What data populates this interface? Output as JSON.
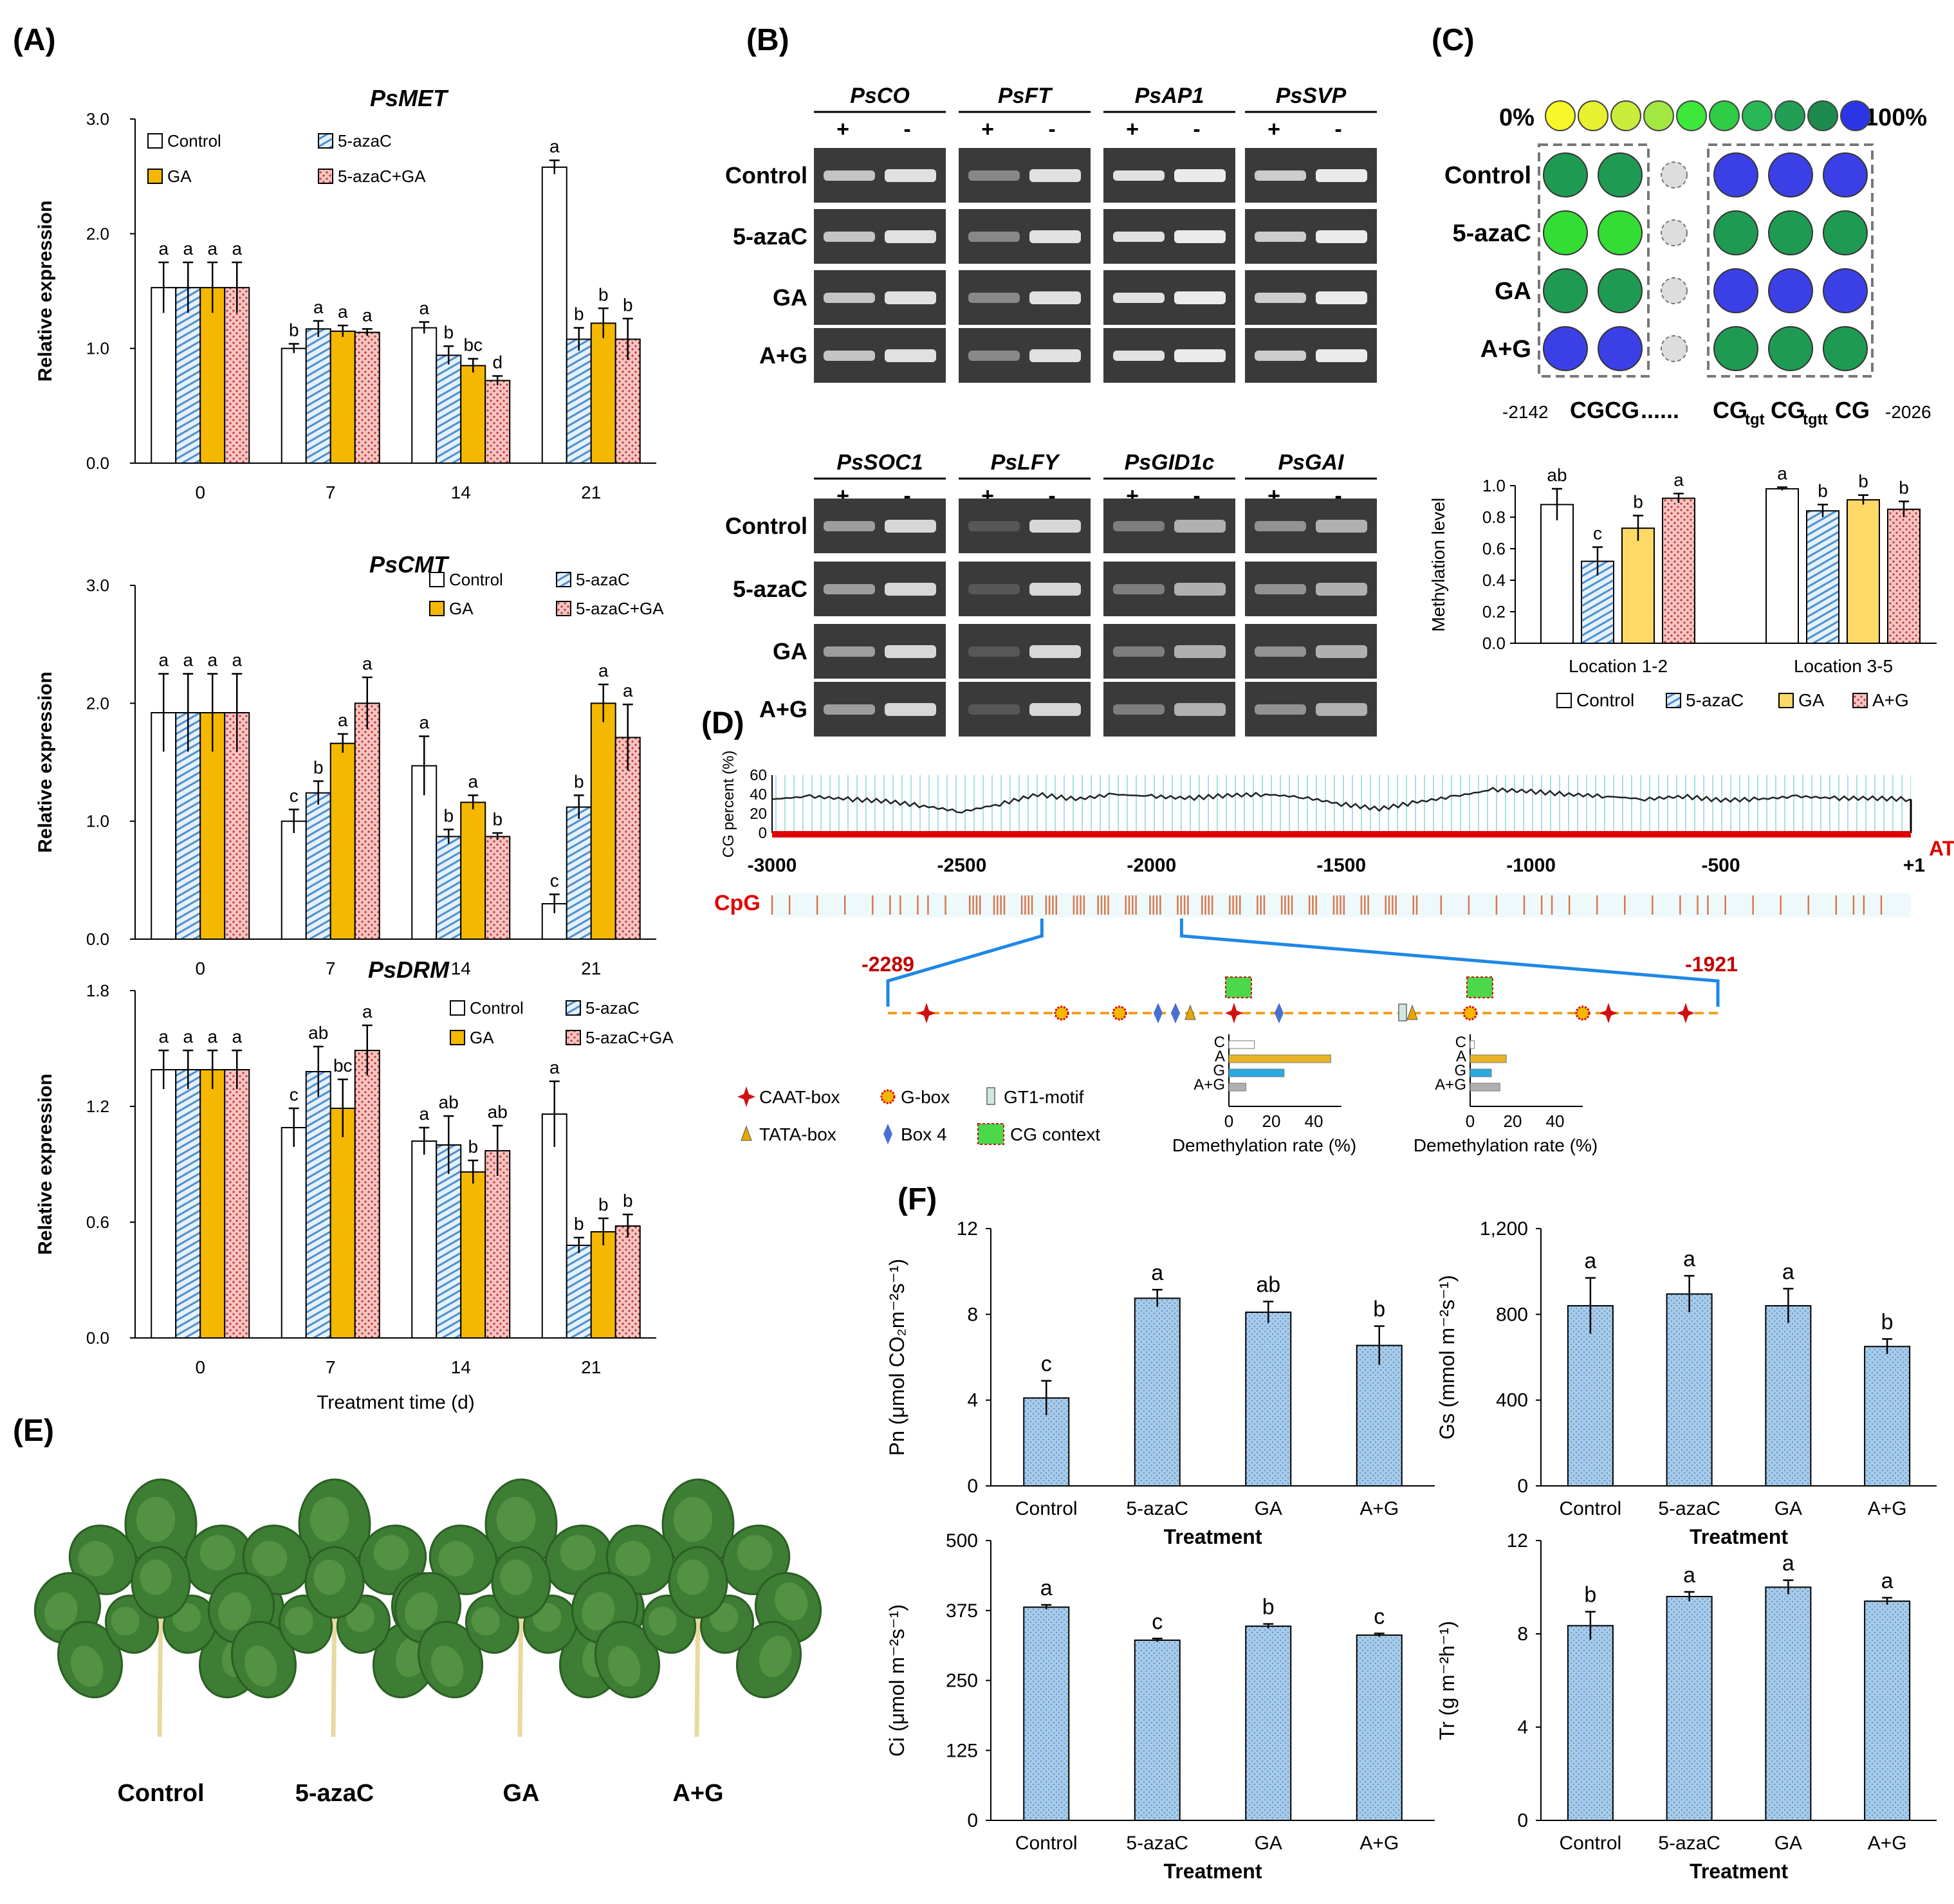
{
  "colors": {
    "control": "#ffffff",
    "aza": "#bcd7ef",
    "aza_hatch": "#4a90d0",
    "ga": "#f5b800",
    "azaga": "#f4b6b6",
    "azaga_hatch": "#c0392b",
    "red_line": "#e00000",
    "cg_line": "#222222",
    "dashed": "#f0a020",
    "brace": "#1e88e5",
    "demeth_ctrl": "#ffffff",
    "demeth_a": "#e6b422",
    "demeth_g": "#29abe2",
    "demeth_ag": "#b0b0b0",
    "f_bar": "#a8cdea"
  },
  "panel_labels": {
    "a": "(A)",
    "b": "(B)",
    "c": "(C)",
    "d": "(D)",
    "e": "(E)",
    "f": "(F)"
  },
  "legend_a": {
    "control": "Control",
    "aza": "5-azaC",
    "ga": "GA",
    "azaga": "5-azaC+GA"
  },
  "panel_b": {
    "genes_top": [
      "PsCO",
      "PsFT",
      "PsAP1",
      "PsSVP"
    ],
    "genes_bottom": [
      "PsSOC1",
      "PsLFY",
      "PsGID1c",
      "PsGAI"
    ],
    "plus": "+",
    "minus": "-",
    "rows": [
      "Control",
      "5-azaC",
      "GA",
      "A+G"
    ]
  },
  "panel_c": {
    "scale_left": "0%",
    "scale_right": "100%",
    "rows": [
      "Control",
      "5-azaC",
      "GA",
      "A+G"
    ],
    "pos_left": "-2142",
    "pos_right": "-2026",
    "seq_left": "CGCG",
    "seq_dots": "......",
    "seq_cg": "CG",
    "seq_tgt": "tgt",
    "seq_tgtt": "tgtt",
    "scale_colors": [
      "#f7f72a",
      "#e8f030",
      "#c8ec3a",
      "#a3e840",
      "#3ee83a",
      "#2fcc46",
      "#28b855",
      "#229e55",
      "#1e8a4e",
      "#2b35e6"
    ],
    "dot_colors": [
      [
        "#1f9a52",
        "#1f9a52",
        "#3b40e6",
        "#3b40e6",
        "#3b40e6"
      ],
      [
        "#33dd33",
        "#33dd33",
        "#1f9a52",
        "#1f9a52",
        "#1f9a52"
      ],
      [
        "#1f9a52",
        "#1f9a52",
        "#3b40e6",
        "#3b40e6",
        "#3b40e6"
      ],
      [
        "#3b40e6",
        "#3b40e6",
        "#1f9a52",
        "#1f9a52",
        "#1f9a52"
      ]
    ],
    "legend": [
      "Control",
      "5-azaC",
      "GA",
      "A+G"
    ]
  },
  "panel_d": {
    "ylabel": "CG percent (%)",
    "y_ticks": [
      "60",
      "40",
      "20",
      "0"
    ],
    "x_ticks": [
      "-3000",
      "-2500",
      "-2000",
      "-1500",
      "-1000",
      "-500",
      "+1"
    ],
    "atg": "ATG",
    "cpg": "CpG",
    "range_left": "-2289",
    "range_right": "-1921",
    "legend": {
      "caat": "CAAT-box",
      "gbox": "G-box",
      "gt1": "GT1-motif",
      "tata": "TATA-box",
      "box4": "Box 4",
      "cg": "CG context"
    },
    "demeth_labels": [
      "C",
      "A",
      "G",
      "A+G"
    ],
    "demeth_ticks": [
      "0",
      "20",
      "40"
    ],
    "demeth_xlabel": "Demethylation rate (%)"
  },
  "panel_e": {
    "labels": [
      "Control",
      "5-azaC",
      "GA",
      "A+G"
    ]
  },
  "chart_data": [
    {
      "type": "bar",
      "title": "PsMET",
      "categories": [
        "0",
        "7",
        "14",
        "21"
      ],
      "series": [
        {
          "name": "Control",
          "values": [
            1.53,
            1.0,
            1.18,
            2.58
          ],
          "errors": [
            0.22,
            0.04,
            0.05,
            0.06
          ],
          "letters": [
            "a",
            "b",
            "a",
            "a"
          ]
        },
        {
          "name": "5-azaC",
          "values": [
            1.53,
            1.17,
            0.94,
            1.08
          ],
          "errors": [
            0.22,
            0.07,
            0.08,
            0.1
          ],
          "letters": [
            "a",
            "a",
            "b",
            "b"
          ]
        },
        {
          "name": "GA",
          "values": [
            1.53,
            1.15,
            0.85,
            1.22
          ],
          "errors": [
            0.22,
            0.05,
            0.06,
            0.13
          ],
          "letters": [
            "a",
            "a",
            "bc",
            "b"
          ]
        },
        {
          "name": "5-azaC+GA",
          "values": [
            1.53,
            1.14,
            0.72,
            1.08
          ],
          "errors": [
            0.22,
            0.03,
            0.04,
            0.18
          ],
          "letters": [
            "a",
            "a",
            "d",
            "b"
          ]
        }
      ],
      "ylabel": "Relative expression",
      "ylim": [
        0,
        3
      ],
      "y_ticks": [
        "0.0",
        "1.0",
        "2.0",
        "3.0"
      ]
    },
    {
      "type": "bar",
      "title": "PsCMT",
      "categories": [
        "0",
        "7",
        "14",
        "21"
      ],
      "series": [
        {
          "name": "Control",
          "values": [
            1.92,
            1.0,
            1.47,
            0.3
          ],
          "errors": [
            0.33,
            0.1,
            0.25,
            0.08
          ],
          "letters": [
            "a",
            "c",
            "a",
            "c"
          ]
        },
        {
          "name": "5-azaC",
          "values": [
            1.92,
            1.24,
            0.87,
            1.12
          ],
          "errors": [
            0.33,
            0.1,
            0.06,
            0.1
          ],
          "letters": [
            "a",
            "b",
            "b",
            "b"
          ]
        },
        {
          "name": "GA",
          "values": [
            1.92,
            1.66,
            1.16,
            2.0
          ],
          "errors": [
            0.33,
            0.08,
            0.06,
            0.16
          ],
          "letters": [
            "a",
            "a",
            "a",
            "a"
          ]
        },
        {
          "name": "5-azaC+GA",
          "values": [
            1.92,
            2.0,
            0.87,
            1.71
          ],
          "errors": [
            0.33,
            0.22,
            0.03,
            0.28
          ],
          "letters": [
            "a",
            "a",
            "b",
            "a"
          ]
        }
      ],
      "ylabel": "Relative expression",
      "ylim": [
        0,
        3
      ],
      "y_ticks": [
        "0.0",
        "1.0",
        "2.0",
        "3.0"
      ]
    },
    {
      "type": "bar",
      "title": "PsDRM",
      "categories": [
        "0",
        "7",
        "14",
        "21"
      ],
      "series": [
        {
          "name": "Control",
          "values": [
            1.39,
            1.09,
            1.02,
            1.16
          ],
          "errors": [
            0.1,
            0.1,
            0.07,
            0.17
          ],
          "letters": [
            "a",
            "c",
            "a",
            "a"
          ]
        },
        {
          "name": "5-azaC",
          "values": [
            1.39,
            1.38,
            1.0,
            0.48
          ],
          "errors": [
            0.1,
            0.13,
            0.15,
            0.04
          ],
          "letters": [
            "a",
            "ab",
            "ab",
            "b"
          ]
        },
        {
          "name": "GA",
          "values": [
            1.39,
            1.19,
            0.86,
            0.55
          ],
          "errors": [
            0.1,
            0.15,
            0.06,
            0.07
          ],
          "letters": [
            "a",
            "bc",
            "b",
            "b"
          ]
        },
        {
          "name": "5-azaC+GA",
          "values": [
            1.39,
            1.49,
            0.97,
            0.58
          ],
          "errors": [
            0.1,
            0.13,
            0.13,
            0.06
          ],
          "letters": [
            "a",
            "a",
            "ab",
            "b"
          ]
        }
      ],
      "xlabel": "Treatment time (d)",
      "ylabel": "Relative expression",
      "ylim": [
        0,
        1.8
      ],
      "y_ticks": [
        "0.0",
        "0.6",
        "1.2",
        "1.8"
      ]
    },
    {
      "type": "bar",
      "title": "Methylation level",
      "categories": [
        "Location 1-2",
        "Location 3-5"
      ],
      "series": [
        {
          "name": "Control",
          "values": [
            0.88,
            0.98
          ],
          "errors": [
            0.1,
            0.01
          ],
          "letters": [
            "ab",
            "a"
          ]
        },
        {
          "name": "5-azaC",
          "values": [
            0.52,
            0.84
          ],
          "errors": [
            0.09,
            0.04
          ],
          "letters": [
            "c",
            "b"
          ]
        },
        {
          "name": "GA",
          "values": [
            0.73,
            0.91
          ],
          "errors": [
            0.08,
            0.03
          ],
          "letters": [
            "b",
            "b"
          ]
        },
        {
          "name": "A+G",
          "values": [
            0.92,
            0.85
          ],
          "errors": [
            0.03,
            0.05
          ],
          "letters": [
            "a",
            "b"
          ]
        }
      ],
      "ylabel": "Methylation level",
      "ylim": [
        0,
        1
      ],
      "y_ticks": [
        "0.0",
        "0.2",
        "0.4",
        "0.6",
        "0.8",
        "1.0"
      ]
    },
    {
      "type": "line",
      "title": "CG percent",
      "x_range": [
        -3000,
        1
      ],
      "ylim": [
        0,
        60
      ],
      "x": [
        -3000,
        -2900,
        -2800,
        -2700,
        -2600,
        -2500,
        -2400,
        -2300,
        -2200,
        -2100,
        -2000,
        -1900,
        -1800,
        -1700,
        -1600,
        -1500,
        -1400,
        -1300,
        -1200,
        -1100,
        -1000,
        -900,
        -800,
        -700,
        -600,
        -500,
        -400,
        -300,
        -200,
        -100,
        0
      ],
      "y": [
        35,
        38,
        35,
        33,
        28,
        22,
        30,
        40,
        35,
        40,
        38,
        36,
        39,
        40,
        37,
        30,
        25,
        32,
        38,
        45,
        43,
        40,
        38,
        35,
        38,
        34,
        35,
        38,
        36,
        36,
        35
      ]
    },
    {
      "type": "bar",
      "title": "Demethylation rate region 1",
      "categories": [
        "C",
        "A",
        "G",
        "A+G"
      ],
      "values": [
        12,
        48,
        26,
        8
      ],
      "xlabel": "Demethylation rate (%)",
      "xlim": [
        0,
        50
      ]
    },
    {
      "type": "bar",
      "title": "Demethylation rate region 2",
      "categories": [
        "C",
        "A",
        "G",
        "A+G"
      ],
      "values": [
        2,
        17,
        10,
        14
      ],
      "xlabel": "Demethylation rate (%)",
      "xlim": [
        0,
        50
      ]
    },
    {
      "type": "bar",
      "title": "Pn",
      "categories": [
        "Control",
        "5-azaC",
        "GA",
        "A+G"
      ],
      "values": [
        4.1,
        8.75,
        8.1,
        6.55
      ],
      "errors": [
        0.8,
        0.4,
        0.5,
        0.9
      ],
      "letters": [
        "c",
        "a",
        "ab",
        "b"
      ],
      "xlabel": "Treatment",
      "ylabel": "Pn (μmol CO₂m⁻²s⁻¹)",
      "ylim": [
        0,
        12
      ],
      "y_ticks": [
        "0",
        "4",
        "8",
        "12"
      ]
    },
    {
      "type": "bar",
      "title": "Gs",
      "categories": [
        "Control",
        "5-azaC",
        "GA",
        "A+G"
      ],
      "values": [
        840,
        895,
        840,
        650
      ],
      "errors": [
        130,
        85,
        80,
        35
      ],
      "letters": [
        "a",
        "a",
        "a",
        "b"
      ],
      "xlabel": "Treatment",
      "ylabel": "Gs (mmol m⁻²s⁻¹)",
      "ylim": [
        0,
        1200
      ],
      "y_ticks": [
        "0",
        "400",
        "800",
        "1,200"
      ]
    },
    {
      "type": "bar",
      "title": "Ci",
      "categories": [
        "Control",
        "5-azaC",
        "GA",
        "A+G"
      ],
      "values": [
        381,
        322,
        347,
        331
      ],
      "errors": [
        4,
        3,
        4,
        3
      ],
      "letters": [
        "a",
        "c",
        "b",
        "c"
      ],
      "xlabel": "Treatment",
      "ylabel": "Ci (μmol m⁻²s⁻¹)",
      "ylim": [
        0,
        500
      ],
      "y_ticks": [
        "0",
        "125",
        "250",
        "375",
        "500"
      ]
    },
    {
      "type": "bar",
      "title": "Tr",
      "categories": [
        "Control",
        "5-azaC",
        "GA",
        "A+G"
      ],
      "values": [
        8.35,
        9.6,
        10.0,
        9.4
      ],
      "errors": [
        0.6,
        0.2,
        0.3,
        0.15
      ],
      "letters": [
        "b",
        "a",
        "a",
        "a"
      ],
      "xlabel": "Treatment",
      "ylabel": "Tr (g m⁻²h⁻¹)",
      "ylim": [
        0,
        12
      ],
      "y_ticks": [
        "0",
        "4",
        "8",
        "12"
      ]
    }
  ]
}
